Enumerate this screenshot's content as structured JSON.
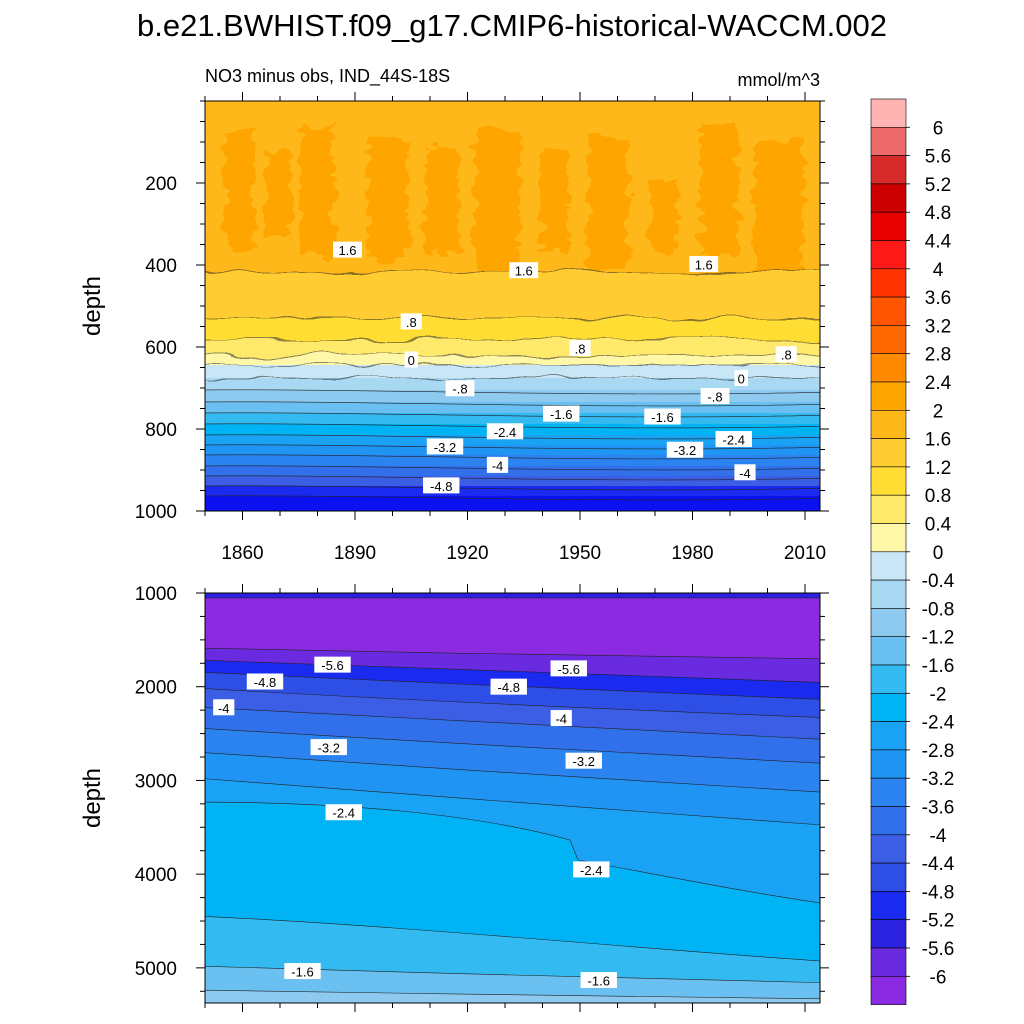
{
  "figure": {
    "title": "b.e21.BWHIST.f09_g17.CMIP6-historical-WACCM.002",
    "subtitle_left": "NO3 minus obs, IND_44S-18S",
    "subtitle_right": "mmol/m^3"
  },
  "chart_data": {
    "type": "contour",
    "variable": "NO3 minus obs",
    "region": "IND_44S-18S",
    "units": "mmol/m^3",
    "colorbar": {
      "labels": [
        "6",
        "5.6",
        "5.2",
        "4.8",
        "4.4",
        "4",
        "3.6",
        "3.2",
        "2.8",
        "2.4",
        "2",
        "1.6",
        "1.2",
        "0.8",
        "0.4",
        "0",
        "-0.4",
        "-0.8",
        "-1.2",
        "-1.6",
        "-2",
        "-2.4",
        "-2.8",
        "-3.2",
        "-3.6",
        "-4",
        "-4.4",
        "-4.8",
        "-5.2",
        "-5.6",
        "-6"
      ],
      "colors": [
        "#ffb3b3",
        "#ed6a6a",
        "#d82b2b",
        "#cc0000",
        "#e60000",
        "#ff1a1a",
        "#ff3300",
        "#ff5500",
        "#ff6a00",
        "#ff8a00",
        "#ffa500",
        "#ffb81a",
        "#ffcc33",
        "#ffdd33",
        "#ffe96b",
        "#fff7a8",
        "#c8e6f5",
        "#a9d9f2",
        "#8ecaf0",
        "#6ac0f0",
        "#33baf0",
        "#00b3f5",
        "#1aa3f5",
        "#1f94f2",
        "#2b83f0",
        "#3170ea",
        "#3b5ee4",
        "#2e4fe6",
        "#1a2aee",
        "#2b22e0",
        "#6a2ae0",
        "#8a2be2"
      ]
    },
    "panels": [
      {
        "id": "upper",
        "xlabel": "",
        "ylabel": "depth",
        "xlim": [
          1850,
          2014
        ],
        "ylim": [
          0,
          1000
        ],
        "xticks": [
          1860,
          1890,
          1920,
          1950,
          1980,
          2010
        ],
        "yticks": [
          200,
          400,
          600,
          800,
          1000
        ],
        "contour_labels": [
          {
            "text": "1.6",
            "x": 1888,
            "y": 365
          },
          {
            "text": "1.6",
            "x": 1935,
            "y": 415
          },
          {
            "text": "1.6",
            "x": 1983,
            "y": 400
          },
          {
            "text": ".8",
            "x": 1905,
            "y": 540
          },
          {
            "text": "0",
            "x": 1905,
            "y": 633
          },
          {
            "text": ".8",
            "x": 1950,
            "y": 605
          },
          {
            "text": ".8",
            "x": 2005,
            "y": 620
          },
          {
            "text": "0",
            "x": 1993,
            "y": 678
          },
          {
            "text": "-.8",
            "x": 1918,
            "y": 703
          },
          {
            "text": "-1.6",
            "x": 1945,
            "y": 765
          },
          {
            "text": "-1.6",
            "x": 1972,
            "y": 772
          },
          {
            "text": "-.8",
            "x": 1986,
            "y": 722
          },
          {
            "text": "-2.4",
            "x": 1930,
            "y": 808
          },
          {
            "text": "-2.4",
            "x": 1991,
            "y": 827
          },
          {
            "text": "-3.2",
            "x": 1914,
            "y": 845
          },
          {
            "text": "-3.2",
            "x": 1978,
            "y": 853
          },
          {
            "text": "-4",
            "x": 1928,
            "y": 890
          },
          {
            "text": "-4",
            "x": 1994,
            "y": 908
          },
          {
            "text": "-4.8",
            "x": 1913,
            "y": 940
          }
        ]
      },
      {
        "id": "lower",
        "xlabel": "",
        "ylabel": "depth",
        "xlim": [
          1850,
          2014
        ],
        "ylim": [
          1000,
          5375
        ],
        "xticks": [
          1860,
          1890,
          1920,
          1950,
          1980,
          2010
        ],
        "yticks": [
          1000,
          2000,
          3000,
          4000,
          5000
        ],
        "contour_labels": [
          {
            "text": "-5.6",
            "x": 1884,
            "y": 1775
          },
          {
            "text": "-5.6",
            "x": 1947,
            "y": 1815
          },
          {
            "text": "-4.8",
            "x": 1866,
            "y": 1955
          },
          {
            "text": "-4.8",
            "x": 1931,
            "y": 2010
          },
          {
            "text": "-4",
            "x": 1855,
            "y": 2230
          },
          {
            "text": "-4",
            "x": 1945,
            "y": 2345
          },
          {
            "text": "-3.2",
            "x": 1883,
            "y": 2655
          },
          {
            "text": "-3.2",
            "x": 1951,
            "y": 2800
          },
          {
            "text": "-2.4",
            "x": 1887,
            "y": 3350
          },
          {
            "text": "-2.4",
            "x": 1953,
            "y": 3960
          },
          {
            "text": "-1.6",
            "x": 1876,
            "y": 5045
          },
          {
            "text": "-1.6",
            "x": 1955,
            "y": 5140
          }
        ]
      }
    ]
  }
}
